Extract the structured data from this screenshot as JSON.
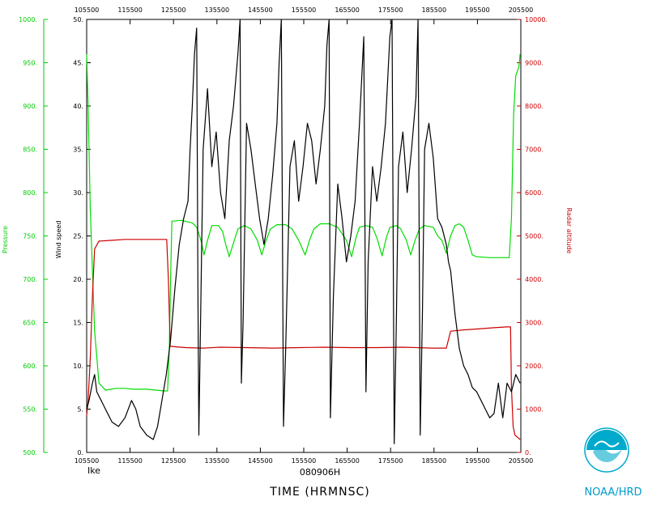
{
  "chart_data": {
    "type": "line",
    "storm": "Ike",
    "date": "080906H",
    "xlabel": "TIME (HRMNSC)",
    "credit": "NOAA/HRD",
    "x_ticks": [
      "105500",
      "115500",
      "125500",
      "135500",
      "145500",
      "155500",
      "165500",
      "175500",
      "185500",
      "195500",
      "205500"
    ],
    "x_range_hours": [
      10.9167,
      20.9167
    ],
    "axes": {
      "pressure": {
        "label": "Pressure",
        "range": [
          500,
          1000
        ],
        "ticks": [
          "500.",
          "550.",
          "600.",
          "650.",
          "700.",
          "750.",
          "800.",
          "850.",
          "900.",
          "950.",
          "1000."
        ],
        "color": "#00cc00"
      },
      "wind_speed": {
        "label": "Wind speed",
        "range": [
          0,
          50
        ],
        "ticks": [
          "0.",
          "5.",
          "10.",
          "15.",
          "20.",
          "25.",
          "30.",
          "35.",
          "40.",
          "45.",
          "50."
        ],
        "color": "#000000"
      },
      "radar_altitude": {
        "label": "Radar altitude",
        "range": [
          0,
          10000
        ],
        "ticks": [
          "0.",
          "1000.",
          "2000.",
          "3000.",
          "4000.",
          "5000.",
          "6000.",
          "7000.",
          "8000.",
          "9000.",
          "10000."
        ],
        "color": "#cc0000"
      }
    },
    "series": [
      {
        "name": "Pressure",
        "axis": "pressure",
        "color": "#00dd00",
        "points": [
          [
            10.917,
            960
          ],
          [
            10.95,
            900
          ],
          [
            11.0,
            780
          ],
          [
            11.1,
            640
          ],
          [
            11.2,
            580
          ],
          [
            11.35,
            572
          ],
          [
            11.6,
            574
          ],
          [
            11.8,
            574
          ],
          [
            12.0,
            573
          ],
          [
            12.3,
            573
          ],
          [
            12.7,
            571
          ],
          [
            12.78,
            571
          ],
          [
            12.82,
            620
          ],
          [
            12.85,
            700
          ],
          [
            12.88,
            767
          ],
          [
            13.1,
            768
          ],
          [
            13.35,
            765
          ],
          [
            13.45,
            760
          ],
          [
            13.55,
            745
          ],
          [
            13.62,
            728
          ],
          [
            13.7,
            745
          ],
          [
            13.8,
            762
          ],
          [
            13.95,
            762
          ],
          [
            14.05,
            755
          ],
          [
            14.12,
            740
          ],
          [
            14.2,
            726
          ],
          [
            14.3,
            742
          ],
          [
            14.4,
            758
          ],
          [
            14.55,
            762
          ],
          [
            14.7,
            758
          ],
          [
            14.85,
            745
          ],
          [
            14.95,
            728
          ],
          [
            15.05,
            745
          ],
          [
            15.15,
            758
          ],
          [
            15.3,
            763
          ],
          [
            15.5,
            763
          ],
          [
            15.65,
            758
          ],
          [
            15.8,
            745
          ],
          [
            15.95,
            728
          ],
          [
            16.05,
            745
          ],
          [
            16.15,
            758
          ],
          [
            16.3,
            764
          ],
          [
            16.5,
            764
          ],
          [
            16.7,
            760
          ],
          [
            16.9,
            745
          ],
          [
            17.02,
            726
          ],
          [
            17.12,
            748
          ],
          [
            17.2,
            760
          ],
          [
            17.35,
            762
          ],
          [
            17.5,
            760
          ],
          [
            17.6,
            748
          ],
          [
            17.72,
            727
          ],
          [
            17.82,
            748
          ],
          [
            17.9,
            760
          ],
          [
            18.05,
            762
          ],
          [
            18.15,
            758
          ],
          [
            18.28,
            745
          ],
          [
            18.38,
            728
          ],
          [
            18.48,
            745
          ],
          [
            18.58,
            758
          ],
          [
            18.7,
            762
          ],
          [
            18.9,
            760
          ],
          [
            19.0,
            750
          ],
          [
            19.1,
            745
          ],
          [
            19.2,
            730
          ],
          [
            19.3,
            750
          ],
          [
            19.4,
            762
          ],
          [
            19.5,
            764
          ],
          [
            19.6,
            760
          ],
          [
            19.7,
            745
          ],
          [
            19.8,
            728
          ],
          [
            19.9,
            726
          ],
          [
            20.2,
            725
          ],
          [
            20.5,
            725
          ],
          [
            20.65,
            725
          ],
          [
            20.7,
            770
          ],
          [
            20.75,
            890
          ],
          [
            20.8,
            935
          ],
          [
            20.87,
            945
          ],
          [
            20.9,
            960
          ]
        ]
      },
      {
        "name": "Radar altitude",
        "axis": "radar_altitude",
        "color": "#cc0000",
        "points": [
          [
            10.917,
            850
          ],
          [
            10.95,
            1200
          ],
          [
            11.0,
            2200
          ],
          [
            11.05,
            3600
          ],
          [
            11.1,
            4700
          ],
          [
            11.2,
            4880
          ],
          [
            11.5,
            4900
          ],
          [
            11.8,
            4920
          ],
          [
            12.2,
            4920
          ],
          [
            12.5,
            4920
          ],
          [
            12.76,
            4920
          ],
          [
            12.8,
            4000
          ],
          [
            12.84,
            2450
          ],
          [
            13.2,
            2420
          ],
          [
            13.6,
            2410
          ],
          [
            14.0,
            2430
          ],
          [
            14.6,
            2420
          ],
          [
            15.2,
            2410
          ],
          [
            15.8,
            2420
          ],
          [
            16.4,
            2430
          ],
          [
            17.0,
            2420
          ],
          [
            17.6,
            2420
          ],
          [
            18.2,
            2430
          ],
          [
            18.9,
            2410
          ],
          [
            19.2,
            2410
          ],
          [
            19.3,
            2800
          ],
          [
            19.6,
            2830
          ],
          [
            19.9,
            2850
          ],
          [
            20.3,
            2880
          ],
          [
            20.6,
            2900
          ],
          [
            20.68,
            2900
          ],
          [
            20.7,
            1500
          ],
          [
            20.74,
            600
          ],
          [
            20.78,
            400
          ],
          [
            20.9,
            300
          ]
        ]
      },
      {
        "name": "Wind speed",
        "axis": "wind_speed",
        "color": "#000000",
        "points": [
          [
            10.917,
            5
          ],
          [
            10.97,
            6
          ],
          [
            11.05,
            8
          ],
          [
            11.1,
            9
          ],
          [
            11.15,
            7
          ],
          [
            11.25,
            6
          ],
          [
            11.35,
            5
          ],
          [
            11.5,
            3.5
          ],
          [
            11.65,
            3
          ],
          [
            11.8,
            4
          ],
          [
            11.95,
            6
          ],
          [
            12.05,
            5
          ],
          [
            12.15,
            3
          ],
          [
            12.3,
            2
          ],
          [
            12.45,
            1.5
          ],
          [
            12.55,
            3
          ],
          [
            12.65,
            6
          ],
          [
            12.75,
            9
          ],
          [
            12.85,
            13
          ],
          [
            12.95,
            19
          ],
          [
            13.05,
            24
          ],
          [
            13.15,
            27
          ],
          [
            13.25,
            29
          ],
          [
            13.3,
            35
          ],
          [
            13.35,
            40
          ],
          [
            13.4,
            46
          ],
          [
            13.45,
            49
          ],
          [
            13.48,
            18
          ],
          [
            13.5,
            2
          ],
          [
            13.53,
            12
          ],
          [
            13.6,
            35
          ],
          [
            13.7,
            42
          ],
          [
            13.8,
            33
          ],
          [
            13.9,
            37
          ],
          [
            14.0,
            30
          ],
          [
            14.1,
            27
          ],
          [
            14.2,
            36
          ],
          [
            14.3,
            40
          ],
          [
            14.4,
            46
          ],
          [
            14.45,
            50
          ],
          [
            14.48,
            8
          ],
          [
            14.52,
            15
          ],
          [
            14.6,
            38
          ],
          [
            14.7,
            35
          ],
          [
            14.8,
            31
          ],
          [
            14.9,
            27
          ],
          [
            15.0,
            24
          ],
          [
            15.1,
            27
          ],
          [
            15.2,
            32
          ],
          [
            15.3,
            38
          ],
          [
            15.35,
            45
          ],
          [
            15.4,
            50
          ],
          [
            15.45,
            3
          ],
          [
            15.5,
            12
          ],
          [
            15.6,
            33
          ],
          [
            15.7,
            36
          ],
          [
            15.8,
            29
          ],
          [
            15.9,
            33
          ],
          [
            16.0,
            38
          ],
          [
            16.1,
            36
          ],
          [
            16.2,
            31
          ],
          [
            16.3,
            35
          ],
          [
            16.4,
            40
          ],
          [
            16.45,
            47
          ],
          [
            16.5,
            50
          ],
          [
            16.53,
            4
          ],
          [
            16.6,
            18
          ],
          [
            16.7,
            31
          ],
          [
            16.8,
            27
          ],
          [
            16.9,
            22
          ],
          [
            17.0,
            25
          ],
          [
            17.1,
            29
          ],
          [
            17.2,
            38
          ],
          [
            17.3,
            48
          ],
          [
            17.35,
            7
          ],
          [
            17.4,
            22
          ],
          [
            17.5,
            33
          ],
          [
            17.6,
            29
          ],
          [
            17.7,
            33
          ],
          [
            17.8,
            38
          ],
          [
            17.85,
            43
          ],
          [
            17.9,
            48
          ],
          [
            17.95,
            50
          ],
          [
            18.0,
            1
          ],
          [
            18.05,
            15
          ],
          [
            18.1,
            33
          ],
          [
            18.2,
            37
          ],
          [
            18.3,
            30
          ],
          [
            18.4,
            35
          ],
          [
            18.5,
            41
          ],
          [
            18.55,
            50
          ],
          [
            18.6,
            2
          ],
          [
            18.65,
            16
          ],
          [
            18.7,
            35
          ],
          [
            18.8,
            38
          ],
          [
            18.9,
            34
          ],
          [
            19.0,
            27
          ],
          [
            19.1,
            26
          ],
          [
            19.2,
            24
          ],
          [
            19.25,
            22
          ],
          [
            19.3,
            21
          ],
          [
            19.4,
            16
          ],
          [
            19.5,
            12
          ],
          [
            19.6,
            10
          ],
          [
            19.7,
            9
          ],
          [
            19.8,
            7.5
          ],
          [
            19.9,
            7
          ],
          [
            20.0,
            6
          ],
          [
            20.1,
            5
          ],
          [
            20.2,
            4
          ],
          [
            20.3,
            4.5
          ],
          [
            20.4,
            8
          ],
          [
            20.5,
            4
          ],
          [
            20.6,
            8
          ],
          [
            20.7,
            7
          ],
          [
            20.8,
            9
          ],
          [
            20.9,
            8
          ]
        ]
      }
    ]
  }
}
